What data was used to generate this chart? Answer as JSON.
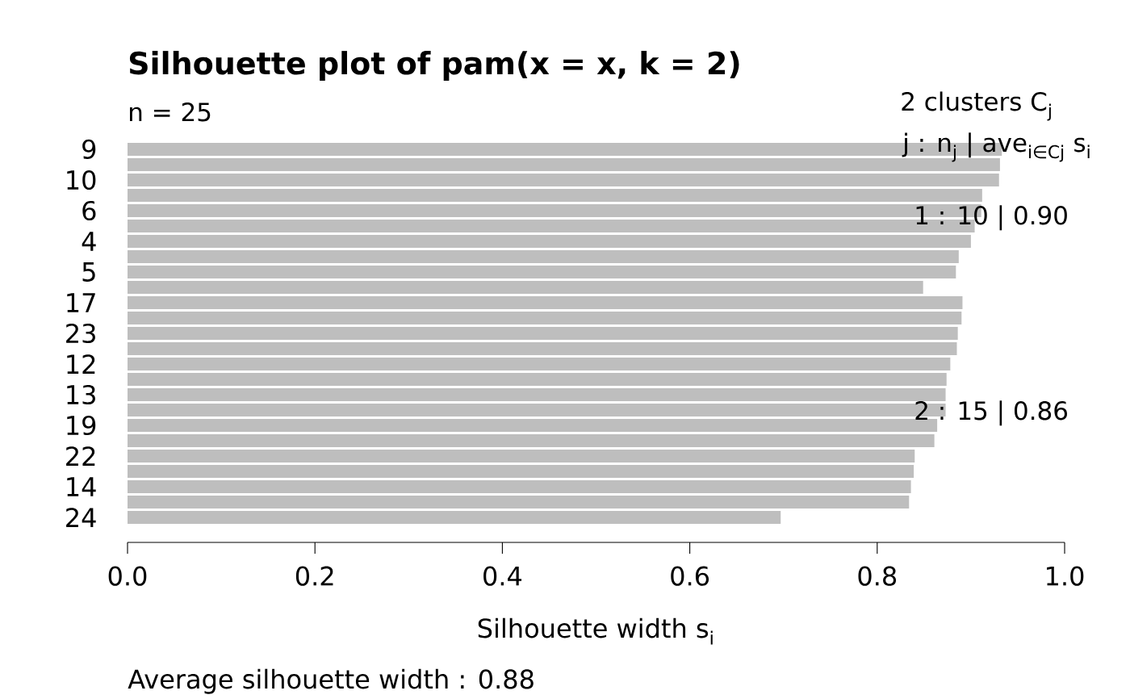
{
  "chart_data": {
    "type": "bar",
    "orientation": "horizontal",
    "title": "Silhouette plot of pam(x = x, k = 2)",
    "subtitle": "n = 25",
    "xlabel": "Silhouette width s$_{i}$",
    "categories": [
      "9",
      null,
      "10",
      null,
      "6",
      null,
      "4",
      null,
      "5",
      null,
      "17",
      null,
      "23",
      null,
      "12",
      null,
      "13",
      null,
      "19",
      null,
      "22",
      null,
      "14",
      null,
      "24"
    ],
    "values": [
      0.933,
      0.931,
      0.93,
      0.912,
      0.911,
      0.904,
      0.9,
      0.887,
      0.884,
      0.849,
      0.891,
      0.89,
      0.886,
      0.885,
      0.878,
      0.874,
      0.873,
      0.873,
      0.864,
      0.861,
      0.84,
      0.839,
      0.836,
      0.834,
      0.697
    ],
    "color": "#bebebe",
    "xlim": [
      0,
      1
    ],
    "xticks": [
      {
        "value": 0,
        "label": "0.0"
      },
      {
        "value": 0.2,
        "label": "0.2"
      },
      {
        "value": 0.4,
        "label": "0.4"
      },
      {
        "value": 0.6,
        "label": "0.6"
      },
      {
        "value": 0.8,
        "label": "0.8"
      },
      {
        "value": 1,
        "label": "1.0"
      }
    ],
    "annotations": [
      "2  clusters  C$_{j}$",
      "j :  n$_{j}$ | ave$_{i∈Cj}$  s$_{i}$",
      "1 :   10  |  0.90",
      "2 :   15  |  0.86",
      "Average silhouette width :  0.88"
    ]
  }
}
